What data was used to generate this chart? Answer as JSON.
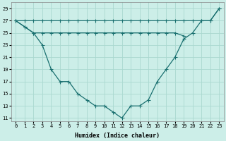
{
  "xlabel": "Humidex (Indice chaleur)",
  "bg_color": "#cceee8",
  "grid_color": "#aad8d0",
  "line_color": "#1a7070",
  "x_main": [
    0,
    1,
    2,
    3,
    4,
    5,
    6,
    7,
    8,
    9,
    10,
    11,
    12,
    13,
    14,
    15,
    16,
    17,
    18,
    19,
    20,
    21,
    22,
    23
  ],
  "line_curve": [
    27,
    26,
    25,
    23,
    19,
    17,
    17,
    15,
    14,
    13,
    13,
    12,
    11,
    13,
    13,
    14,
    17,
    19,
    21,
    24,
    25,
    27,
    27,
    29
  ],
  "x_top": [
    0,
    1,
    2,
    3,
    4,
    5,
    6,
    7,
    8,
    9,
    10,
    11,
    12,
    13,
    14,
    15,
    16,
    17,
    18,
    19,
    20,
    21,
    22,
    23
  ],
  "line_top": [
    27,
    27,
    27,
    27,
    27,
    27,
    27,
    27,
    27,
    27,
    27,
    27,
    27,
    27,
    27,
    27,
    27,
    27,
    27,
    27,
    27,
    27,
    27,
    29
  ],
  "x_mid": [
    0,
    1,
    2,
    3,
    4,
    5,
    6,
    7,
    8,
    9,
    10,
    11,
    12,
    13,
    14,
    15,
    16,
    17,
    18,
    19
  ],
  "line_mid": [
    27,
    26,
    25,
    25,
    25,
    25,
    25,
    25,
    25,
    25,
    25,
    25,
    25,
    25,
    25,
    25,
    25,
    25,
    25,
    24.5
  ],
  "ylim": [
    10.5,
    30
  ],
  "xlim": [
    -0.5,
    23.5
  ],
  "yticks": [
    11,
    13,
    15,
    17,
    19,
    21,
    23,
    25,
    27,
    29
  ],
  "xticks": [
    0,
    1,
    2,
    3,
    4,
    5,
    6,
    7,
    8,
    9,
    10,
    11,
    12,
    13,
    14,
    15,
    16,
    17,
    18,
    19,
    20,
    21,
    22,
    23
  ],
  "xlabel_fontsize": 6,
  "tick_fontsize": 5
}
